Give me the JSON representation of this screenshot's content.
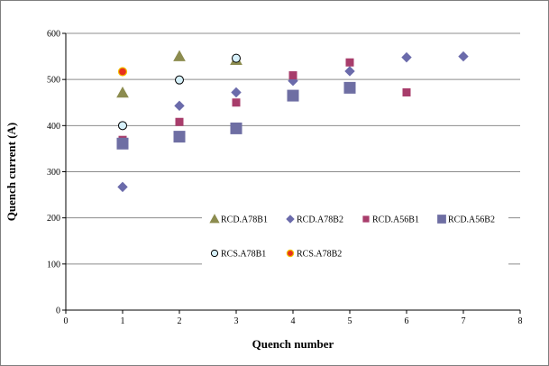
{
  "chart_data": {
    "type": "scatter",
    "title": "",
    "xlabel": "Quench number",
    "ylabel": "Quench current (A)",
    "xlim": [
      0,
      8
    ],
    "ylim": [
      0,
      600
    ],
    "xticks": [
      0,
      1,
      2,
      3,
      4,
      5,
      6,
      7,
      8
    ],
    "yticks": [
      0,
      100,
      200,
      300,
      400,
      500,
      600
    ],
    "grid": "horizontal",
    "legend_position": "inside-lower-center",
    "series": [
      {
        "name": "RCD.A78B1",
        "marker": "triangle",
        "color": "#8c8c4f",
        "points": [
          [
            1,
            471
          ],
          [
            2,
            550
          ],
          [
            3,
            542
          ]
        ]
      },
      {
        "name": "RCD.A78B2",
        "marker": "diamond",
        "color": "#6b6bab",
        "points": [
          [
            1,
            267
          ],
          [
            2,
            443
          ],
          [
            3,
            472
          ],
          [
            4,
            497
          ],
          [
            5,
            518
          ],
          [
            6,
            548
          ],
          [
            7,
            550
          ]
        ]
      },
      {
        "name": "RCD.A56B1",
        "marker": "square",
        "color": "#a83d6b",
        "points": [
          [
            1,
            369
          ],
          [
            2,
            408
          ],
          [
            3,
            450
          ],
          [
            4,
            509
          ],
          [
            5,
            537
          ],
          [
            6,
            472
          ]
        ]
      },
      {
        "name": "RCD.A56B2",
        "marker": "square-large",
        "color": "#6e6ea3",
        "points": [
          [
            1,
            361
          ],
          [
            2,
            376
          ],
          [
            3,
            394
          ],
          [
            4,
            465
          ],
          [
            5,
            482
          ]
        ]
      },
      {
        "name": "RCS.A78B1",
        "marker": "circle-open",
        "color": "#d6f0fa",
        "points": [
          [
            1,
            400
          ],
          [
            2,
            499
          ],
          [
            3,
            546
          ]
        ]
      },
      {
        "name": "RCS.A78B2",
        "marker": "circle-filled",
        "color": "#e8311c",
        "points": [
          [
            1,
            517
          ]
        ]
      }
    ]
  }
}
